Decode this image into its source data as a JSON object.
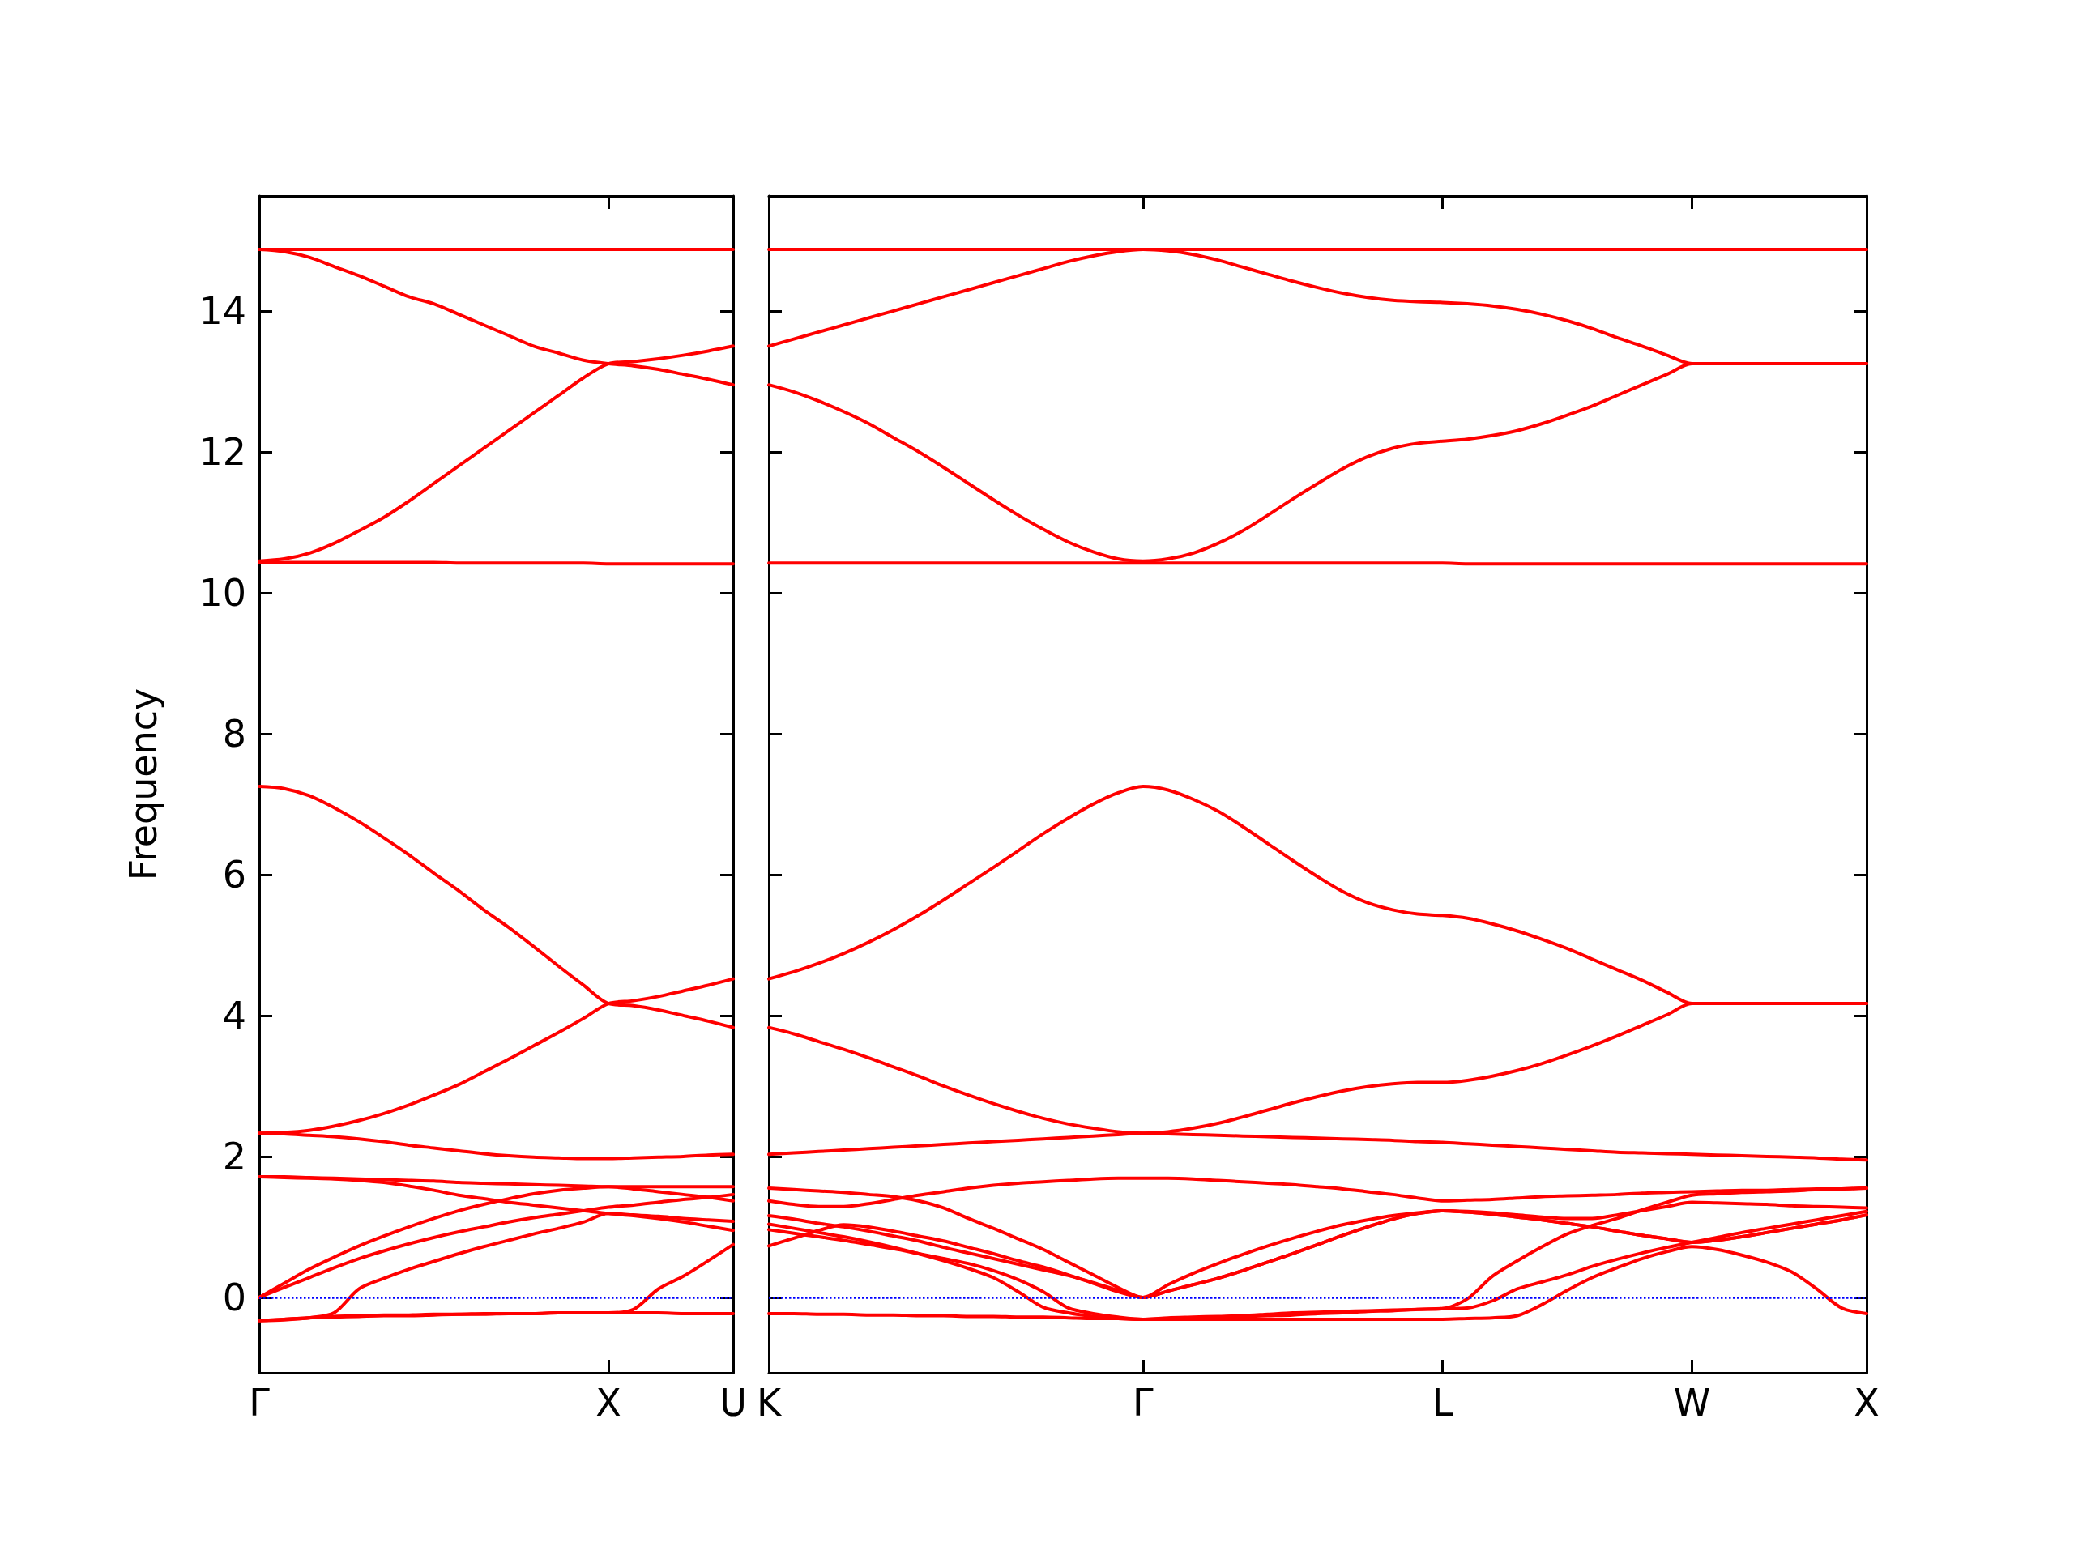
{
  "chart_data": [
    {
      "type": "line",
      "ylabel": "Frequency",
      "ylim": [
        -1.07,
        15.63
      ],
      "yticks": [
        0,
        2,
        4,
        6,
        8,
        10,
        12,
        14
      ],
      "grid": false,
      "marker": "none",
      "line_style": "solid",
      "categories": [
        "Γ",
        null,
        null,
        null,
        null,
        null,
        null,
        null,
        null,
        null,
        null,
        null,
        null,
        null,
        "X",
        null,
        null,
        null,
        null,
        "U"
      ],
      "ref_lines": [
        {
          "axis": "y",
          "value": 0,
          "color": "#0000ff",
          "line_style": "dotted"
        }
      ],
      "series": [
        {
          "color": "#ff0000",
          "values": [
            14.87,
            14.87,
            14.87,
            14.87,
            14.87,
            14.87,
            14.87,
            14.87,
            14.87,
            14.87,
            14.87,
            14.87,
            14.87,
            14.87,
            14.87,
            14.87,
            14.87,
            14.87,
            14.87,
            14.87
          ]
        },
        {
          "color": "#ff0000",
          "values": [
            14.87,
            14.84,
            14.76,
            14.63,
            14.5,
            14.35,
            14.2,
            14.1,
            13.95,
            13.8,
            13.65,
            13.5,
            13.4,
            13.3,
            13.25,
            13.22,
            13.17,
            13.1,
            13.03,
            12.95
          ]
        },
        {
          "color": "#ff0000",
          "values": [
            10.45,
            10.48,
            10.56,
            10.7,
            10.88,
            11.07,
            11.3,
            11.55,
            11.8,
            12.05,
            12.3,
            12.55,
            12.8,
            13.05,
            13.25,
            13.28,
            13.32,
            13.37,
            13.43,
            13.5
          ]
        },
        {
          "color": "#ff0000",
          "values": [
            10.43,
            10.43,
            10.43,
            10.43,
            10.43,
            10.43,
            10.43,
            10.43,
            10.42,
            10.42,
            10.42,
            10.42,
            10.42,
            10.42,
            10.41,
            10.41,
            10.41,
            10.41,
            10.41,
            10.41
          ]
        },
        {
          "color": "#ff0000",
          "values": [
            7.25,
            7.22,
            7.12,
            6.95,
            6.75,
            6.52,
            6.28,
            6.02,
            5.77,
            5.5,
            5.25,
            4.98,
            4.7,
            4.43,
            4.17,
            4.14,
            4.08,
            4.0,
            3.92,
            3.83
          ]
        },
        {
          "color": "#ff0000",
          "values": [
            2.33,
            2.34,
            2.37,
            2.43,
            2.51,
            2.61,
            2.73,
            2.87,
            3.02,
            3.2,
            3.38,
            3.57,
            3.76,
            3.96,
            4.17,
            4.21,
            4.27,
            4.35,
            4.43,
            4.52
          ]
        },
        {
          "color": "#ff0000",
          "values": [
            2.33,
            2.32,
            2.3,
            2.28,
            2.25,
            2.21,
            2.16,
            2.12,
            2.08,
            2.04,
            2.01,
            1.99,
            1.98,
            1.97,
            1.97,
            1.98,
            1.99,
            2.0,
            2.02,
            2.03
          ]
        },
        {
          "color": "#ff0000",
          "values": [
            1.71,
            1.71,
            1.7,
            1.69,
            1.68,
            1.67,
            1.66,
            1.65,
            1.63,
            1.62,
            1.61,
            1.6,
            1.59,
            1.58,
            1.57,
            1.57,
            1.57,
            1.57,
            1.57,
            1.57
          ]
        },
        {
          "color": "#ff0000",
          "values": [
            1.71,
            1.7,
            1.69,
            1.68,
            1.66,
            1.63,
            1.58,
            1.52,
            1.45,
            1.4,
            1.35,
            1.31,
            1.27,
            1.23,
            1.19,
            1.16,
            1.12,
            1.07,
            1.01,
            0.95
          ]
        },
        {
          "color": "#ff0000",
          "values": [
            0,
            0.2,
            0.4,
            0.57,
            0.73,
            0.87,
            1.0,
            1.12,
            1.23,
            1.32,
            1.4,
            1.47,
            1.52,
            1.55,
            1.57,
            1.54,
            1.5,
            1.46,
            1.42,
            1.37
          ]
        },
        {
          "color": "#ff0000",
          "values": [
            0,
            0.14,
            0.28,
            0.42,
            0.55,
            0.66,
            0.76,
            0.85,
            0.93,
            1.0,
            1.07,
            1.13,
            1.18,
            1.23,
            1.28,
            1.31,
            1.35,
            1.39,
            1.42,
            1.46
          ]
        },
        {
          "color": "#ff0000",
          "values": [
            -0.33,
            -0.32,
            -0.29,
            -0.22,
            0.12,
            0.27,
            0.4,
            0.51,
            0.62,
            0.72,
            0.81,
            0.9,
            0.98,
            1.07,
            1.19,
            1.17,
            1.15,
            1.12,
            1.1,
            1.08
          ]
        },
        {
          "color": "#ff0000",
          "values": [
            -0.33,
            -0.31,
            -0.29,
            -0.27,
            -0.26,
            -0.25,
            -0.25,
            -0.24,
            -0.24,
            -0.23,
            -0.23,
            -0.23,
            -0.22,
            -0.22,
            -0.22,
            -0.17,
            0.12,
            0.3,
            0.52,
            0.75
          ]
        },
        {
          "color": "#ff0000",
          "values": [
            -0.33,
            -0.31,
            -0.29,
            -0.28,
            -0.27,
            -0.26,
            -0.26,
            -0.25,
            -0.24,
            -0.24,
            -0.23,
            -0.23,
            -0.22,
            -0.22,
            -0.22,
            -0.22,
            -0.22,
            -0.23,
            -0.23,
            -0.23
          ]
        }
      ]
    },
    {
      "type": "line",
      "ylim": [
        -1.07,
        15.63
      ],
      "yticks": [
        0,
        2,
        4,
        6,
        8,
        10,
        12,
        14
      ],
      "tick_labels": "x",
      "grid": false,
      "marker": "none",
      "line_style": "solid",
      "categories": [
        "K",
        null,
        null,
        null,
        null,
        null,
        null,
        null,
        null,
        null,
        null,
        null,
        null,
        null,
        null,
        "Γ",
        null,
        null,
        null,
        null,
        null,
        null,
        null,
        null,
        null,
        null,
        null,
        "L",
        null,
        null,
        null,
        null,
        null,
        null,
        null,
        null,
        null,
        "W",
        null,
        null,
        null,
        null,
        null,
        null,
        "X"
      ],
      "ref_lines": [
        {
          "axis": "y",
          "value": 0,
          "color": "#0000ff",
          "line_style": "dotted"
        }
      ],
      "series": [
        {
          "color": "#ff0000",
          "values": [
            14.87,
            14.87,
            14.87,
            14.87,
            14.87,
            14.87,
            14.87,
            14.87,
            14.87,
            14.87,
            14.87,
            14.87,
            14.87,
            14.87,
            14.87,
            14.87,
            14.87,
            14.87,
            14.87,
            14.87,
            14.87,
            14.87,
            14.87,
            14.87,
            14.87,
            14.87,
            14.87,
            14.87,
            14.87,
            14.87,
            14.87,
            14.87,
            14.87,
            14.87,
            14.87,
            14.87,
            14.87,
            14.87,
            14.87,
            14.87,
            14.87,
            14.87,
            14.87,
            14.87,
            14.87
          ]
        },
        {
          "color": "#ff0000",
          "values": [
            13.5,
            13.6,
            13.7,
            13.8,
            13.9,
            14.0,
            14.1,
            14.2,
            14.3,
            14.4,
            14.5,
            14.6,
            14.7,
            14.78,
            14.84,
            14.87,
            14.85,
            14.8,
            14.72,
            14.62,
            14.52,
            14.42,
            14.33,
            14.25,
            14.19,
            14.15,
            14.13,
            14.12,
            14.1,
            14.07,
            14.02,
            13.95,
            13.86,
            13.75,
            13.62,
            13.5,
            13.37,
            13.25,
            13.25,
            13.25,
            13.25,
            13.25,
            13.25,
            13.25,
            13.25
          ]
        },
        {
          "color": "#ff0000",
          "values": [
            12.95,
            12.85,
            12.72,
            12.57,
            12.4,
            12.2,
            12.0,
            11.78,
            11.55,
            11.32,
            11.1,
            10.9,
            10.72,
            10.58,
            10.48,
            10.45,
            10.48,
            10.56,
            10.7,
            10.88,
            11.1,
            11.33,
            11.55,
            11.76,
            11.93,
            12.05,
            12.12,
            12.15,
            12.18,
            12.23,
            12.3,
            12.4,
            12.52,
            12.65,
            12.8,
            12.95,
            13.1,
            13.25,
            13.25,
            13.25,
            13.25,
            13.25,
            13.25,
            13.25,
            13.25
          ]
        },
        {
          "color": "#ff0000",
          "values": [
            10.42,
            10.42,
            10.42,
            10.42,
            10.42,
            10.42,
            10.42,
            10.42,
            10.42,
            10.42,
            10.42,
            10.42,
            10.42,
            10.42,
            10.42,
            10.42,
            10.42,
            10.42,
            10.42,
            10.42,
            10.42,
            10.42,
            10.42,
            10.42,
            10.42,
            10.42,
            10.42,
            10.42,
            10.41,
            10.41,
            10.41,
            10.41,
            10.41,
            10.41,
            10.41,
            10.41,
            10.41,
            10.41,
            10.41,
            10.41,
            10.41,
            10.41,
            10.41,
            10.41,
            10.41
          ]
        },
        {
          "color": "#ff0000",
          "values": [
            4.52,
            4.62,
            4.74,
            4.88,
            5.04,
            5.22,
            5.42,
            5.64,
            5.87,
            6.1,
            6.34,
            6.58,
            6.8,
            7.0,
            7.16,
            7.25,
            7.2,
            7.07,
            6.9,
            6.68,
            6.44,
            6.2,
            5.97,
            5.76,
            5.6,
            5.5,
            5.44,
            5.42,
            5.38,
            5.3,
            5.2,
            5.08,
            4.95,
            4.8,
            4.65,
            4.5,
            4.33,
            4.17,
            4.17,
            4.17,
            4.17,
            4.17,
            4.17,
            4.17,
            4.17
          ]
        },
        {
          "color": "#ff0000",
          "values": [
            3.83,
            3.74,
            3.63,
            3.52,
            3.4,
            3.27,
            3.14,
            3.0,
            2.87,
            2.75,
            2.64,
            2.54,
            2.46,
            2.4,
            2.35,
            2.33,
            2.35,
            2.4,
            2.47,
            2.56,
            2.66,
            2.76,
            2.85,
            2.93,
            2.99,
            3.03,
            3.05,
            3.05,
            3.08,
            3.14,
            3.22,
            3.32,
            3.44,
            3.57,
            3.71,
            3.86,
            4.01,
            4.17,
            4.17,
            4.17,
            4.17,
            4.17,
            4.17,
            4.17,
            4.17
          ]
        },
        {
          "color": "#ff0000",
          "values": [
            2.03,
            2.05,
            2.07,
            2.09,
            2.11,
            2.13,
            2.15,
            2.17,
            2.19,
            2.21,
            2.23,
            2.25,
            2.27,
            2.29,
            2.31,
            2.33,
            2.32,
            2.31,
            2.3,
            2.29,
            2.28,
            2.27,
            2.26,
            2.25,
            2.24,
            2.23,
            2.21,
            2.2,
            2.18,
            2.16,
            2.14,
            2.12,
            2.1,
            2.08,
            2.06,
            2.05,
            2.04,
            2.03,
            2.02,
            2.01,
            2.0,
            1.99,
            1.98,
            1.96,
            1.95
          ]
        },
        {
          "color": "#ff0000",
          "values": [
            1.37,
            1.32,
            1.29,
            1.29,
            1.33,
            1.39,
            1.45,
            1.5,
            1.55,
            1.59,
            1.62,
            1.64,
            1.66,
            1.68,
            1.69,
            1.69,
            1.69,
            1.68,
            1.66,
            1.64,
            1.62,
            1.6,
            1.57,
            1.54,
            1.5,
            1.46,
            1.41,
            1.37,
            1.38,
            1.39,
            1.41,
            1.43,
            1.44,
            1.45,
            1.46,
            1.48,
            1.49,
            1.5,
            1.51,
            1.52,
            1.52,
            1.53,
            1.54,
            1.54,
            1.55
          ]
        },
        {
          "color": "#ff0000",
          "values": [
            1.55,
            1.53,
            1.51,
            1.49,
            1.46,
            1.43,
            1.37,
            1.27,
            1.12,
            0.98,
            0.83,
            0.68,
            0.5,
            0.32,
            0.14,
            0,
            0.18,
            0.34,
            0.48,
            0.61,
            0.73,
            0.84,
            0.94,
            1.03,
            1.1,
            1.16,
            1.2,
            1.23,
            1.22,
            1.2,
            1.17,
            1.14,
            1.12,
            1.12,
            1.17,
            1.23,
            1.29,
            1.35,
            1.34,
            1.33,
            1.32,
            1.3,
            1.29,
            1.28,
            1.27
          ]
        },
        {
          "color": "#ff0000",
          "values": [
            1.16,
            1.11,
            1.05,
            1.0,
            0.94,
            0.87,
            0.8,
            0.71,
            0.63,
            0.55,
            0.47,
            0.39,
            0.31,
            0.21,
            0.1,
            0,
            0.09,
            0.18,
            0.27,
            0.38,
            0.5,
            0.62,
            0.75,
            0.88,
            1.0,
            1.11,
            1.19,
            1.23,
            1.21,
            1.18,
            1.14,
            1.1,
            1.05,
            1.0,
            0.94,
            0.88,
            0.83,
            0.78,
            0.81,
            0.86,
            0.92,
            0.98,
            1.04,
            1.1,
            1.17
          ]
        },
        {
          "color": "#ff0000",
          "values": [
            0.73,
            0.84,
            0.95,
            1.03,
            1.0,
            0.94,
            0.87,
            0.8,
            0.71,
            0.62,
            0.52,
            0.43,
            0.32,
            0.2,
            0.08,
            0,
            0.09,
            0.18,
            0.27,
            0.38,
            0.5,
            0.62,
            0.75,
            0.88,
            1.0,
            1.11,
            1.19,
            1.23,
            1.21,
            1.18,
            1.14,
            1.1,
            1.05,
            1.0,
            0.94,
            0.88,
            0.83,
            0.78,
            0.81,
            0.86,
            0.92,
            0.98,
            1.04,
            1.1,
            1.17
          ]
        },
        {
          "color": "#ff0000",
          "values": [
            1.04,
            0.98,
            0.92,
            0.86,
            0.79,
            0.71,
            0.62,
            0.52,
            0.41,
            0.28,
            0.08,
            -0.14,
            -0.22,
            -0.27,
            -0.3,
            -0.31,
            -0.31,
            -0.31,
            -0.31,
            -0.31,
            -0.31,
            -0.31,
            -0.31,
            -0.31,
            -0.31,
            -0.31,
            -0.31,
            -0.31,
            -0.3,
            -0.29,
            -0.26,
            -0.1,
            0.1,
            0.28,
            0.42,
            0.55,
            0.65,
            0.72,
            0.68,
            0.6,
            0.5,
            0.36,
            0.12,
            -0.15,
            -0.23
          ]
        },
        {
          "color": "#ff0000",
          "values": [
            0.96,
            0.91,
            0.86,
            0.81,
            0.75,
            0.69,
            0.62,
            0.55,
            0.48,
            0.38,
            0.25,
            0.08,
            -0.15,
            -0.23,
            -0.28,
            -0.31,
            -0.29,
            -0.28,
            -0.27,
            -0.26,
            -0.24,
            -0.22,
            -0.21,
            -0.2,
            -0.19,
            -0.18,
            -0.17,
            -0.16,
            -0.15,
            -0.05,
            0.12,
            0.22,
            0.32,
            0.44,
            0.54,
            0.63,
            0.71,
            0.78,
            0.85,
            0.92,
            0.98,
            1.04,
            1.1,
            1.16,
            1.22
          ]
        },
        {
          "color": "#ff0000",
          "values": [
            -0.23,
            -0.23,
            -0.24,
            -0.24,
            -0.25,
            -0.25,
            -0.26,
            -0.26,
            -0.27,
            -0.27,
            -0.28,
            -0.28,
            -0.29,
            -0.3,
            -0.3,
            -0.31,
            -0.3,
            -0.29,
            -0.28,
            -0.27,
            -0.26,
            -0.25,
            -0.23,
            -0.22,
            -0.2,
            -0.19,
            -0.17,
            -0.16,
            -0.02,
            0.3,
            0.52,
            0.72,
            0.9,
            1.02,
            1.12,
            1.24,
            1.35,
            1.45,
            1.47,
            1.49,
            1.5,
            1.51,
            1.53,
            1.54,
            1.55
          ]
        }
      ]
    }
  ]
}
